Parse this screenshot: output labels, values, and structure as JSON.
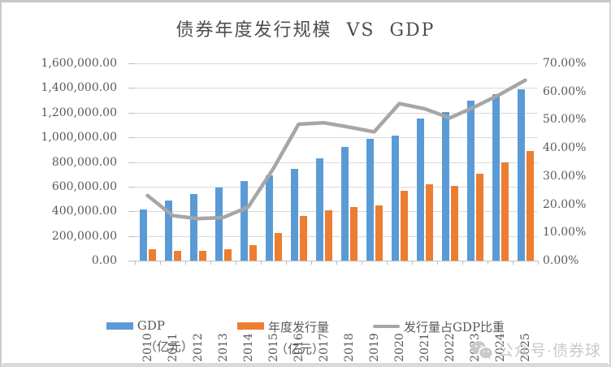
{
  "title": "债券年度发行规模  VS  GDP",
  "axes": {
    "left_labels": [
      "1,600,000.00",
      "1,400,000.00",
      "1,200,000.00",
      "1,000,000.00",
      "800,000.00",
      "600,000.00",
      "400,000.00",
      "200,000.00",
      "0.00"
    ],
    "right_labels": [
      "70.00%",
      "60.00%",
      "50.00%",
      "40.00%",
      "30.00%",
      "20.00%",
      "10.00%",
      "0.00%"
    ]
  },
  "chart_data": {
    "type": "bar",
    "subtype": "grouped-bars-with-secondary-axis-line",
    "title": "债券年度发行规模  VS  GDP",
    "categories": [
      "2010",
      "2011",
      "2012",
      "2013",
      "2014",
      "2015",
      "2016",
      "2017",
      "2018",
      "2019",
      "2020",
      "2021",
      "2022",
      "2023",
      "2024",
      "2025"
    ],
    "series": [
      {
        "name": "GDP（亿元）",
        "type": "bar",
        "axis": "left",
        "color": "#5b9bd5",
        "values": [
          412119,
          487940,
          538580,
          592963,
          643563,
          688858,
          746395,
          832036,
          919281,
          986515,
          1013567,
          1149237,
          1204724,
          1294272,
          1349084,
          1390000
        ]
      },
      {
        "name": "年度发行量（亿元）",
        "type": "bar",
        "axis": "left",
        "color": "#ed7d31",
        "values": [
          95000,
          78000,
          80000,
          91000,
          122000,
          225000,
          361000,
          407000,
          436000,
          451000,
          565000,
          619000,
          609000,
          706000,
          796000,
          889000
        ]
      },
      {
        "name": "发行量占GDP比重",
        "type": "line",
        "axis": "right",
        "color": "#a6a6a6",
        "values_pct": [
          23.1,
          16.0,
          14.9,
          15.3,
          19.0,
          32.7,
          48.4,
          48.9,
          47.4,
          45.7,
          55.7,
          53.9,
          50.6,
          54.6,
          59.0,
          64.0
        ]
      }
    ],
    "left_axis": {
      "min": 0,
      "max": 1600000,
      "step": 200000
    },
    "right_axis": {
      "min": 0,
      "max": 70,
      "step": 10,
      "unit": "%"
    },
    "grid": true,
    "legend_position": "bottom"
  },
  "legend": {
    "items": [
      {
        "label": "GDP",
        "sublabel": "（亿元）",
        "color": "#5b9bd5",
        "swatch": "bar"
      },
      {
        "label": "年度发行量",
        "sublabel": "（亿元）",
        "color": "#ed7d31",
        "swatch": "bar"
      },
      {
        "label": "发行量占GDP比重",
        "sublabel": "",
        "color": "#a6a6a6",
        "swatch": "line"
      }
    ]
  },
  "watermark": {
    "icon": "wechat-icon",
    "text": "公众号·债券球"
  },
  "colors": {
    "gdp_bar": "#5b9bd5",
    "issuance_bar": "#ed7d31",
    "ratio_line": "#a6a6a6",
    "gridline": "#d9d9d9",
    "axis_text": "#595959",
    "title_text": "#4d4d4d",
    "watermark_text": "#c9c9c9"
  }
}
